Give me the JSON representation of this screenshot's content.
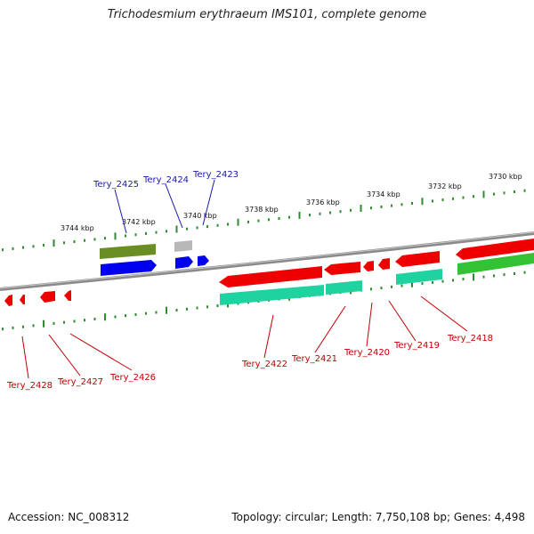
{
  "title": "Trichodesmium erythraeum IMS101, complete genome",
  "footer": {
    "accession": "Accession: NC_008312",
    "summary": "Topology: circular; Length: 7,750,108 bp; Genes: 4,498"
  },
  "colors": {
    "backbone": "#8a8a8a",
    "tick": "#2e8b2e",
    "forward_gene_label": "#1a1aa8",
    "reverse_gene_label": "#c00000",
    "olive": "#6b8e23",
    "blue": "#0000ee",
    "gray": "#b8b8b8",
    "red": "#ee0000",
    "teal": "#1ed3a0",
    "green": "#33c233"
  },
  "ruler": {
    "labels": [
      "3744 kbp",
      "3742 kbp",
      "3740 kbp",
      "3738 kbp",
      "3736 kbp",
      "3734 kbp",
      "3732 kbp",
      "3730 kbp"
    ]
  },
  "gene_labels": {
    "forward": [
      "Tery_2425",
      "Tery_2424",
      "Tery_2423"
    ],
    "reverse": [
      "Tery_2428",
      "Tery_2427",
      "Tery_2426",
      "Tery_2422",
      "Tery_2421",
      "Tery_2420",
      "Tery_2419",
      "Tery_2418"
    ]
  }
}
